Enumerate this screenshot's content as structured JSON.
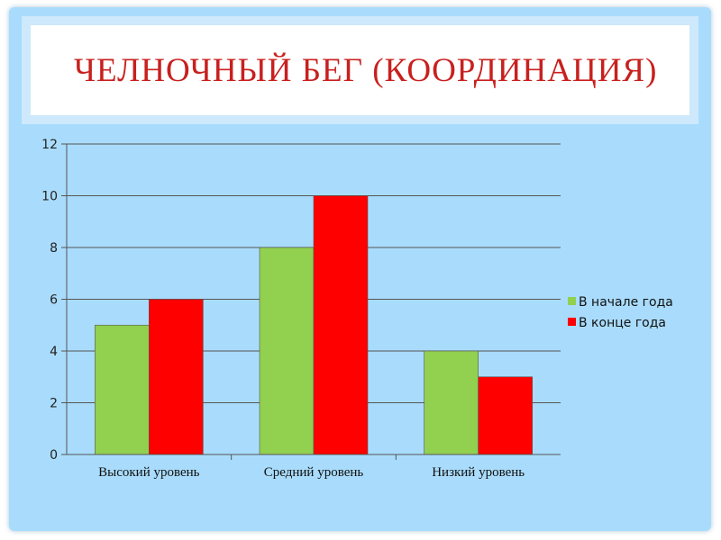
{
  "title": "ЧЕЛНОЧНЫЙ БЕГ (КООРДИНАЦИЯ)",
  "chart_data": {
    "type": "bar",
    "title": "",
    "xlabel": "",
    "ylabel": "",
    "categories": [
      "Высокий уровень",
      "Средний уровень",
      "Низкий уровень"
    ],
    "series": [
      {
        "name": "В начале года",
        "values": [
          5,
          8,
          4
        ],
        "color": "#92d050"
      },
      {
        "name": "В конце года",
        "values": [
          6,
          10,
          3
        ],
        "color": "#ff0000"
      }
    ],
    "ylim": [
      0,
      12
    ],
    "yticks": [
      0,
      2,
      4,
      6,
      8,
      10,
      12
    ],
    "grid": true,
    "legend": "right"
  }
}
